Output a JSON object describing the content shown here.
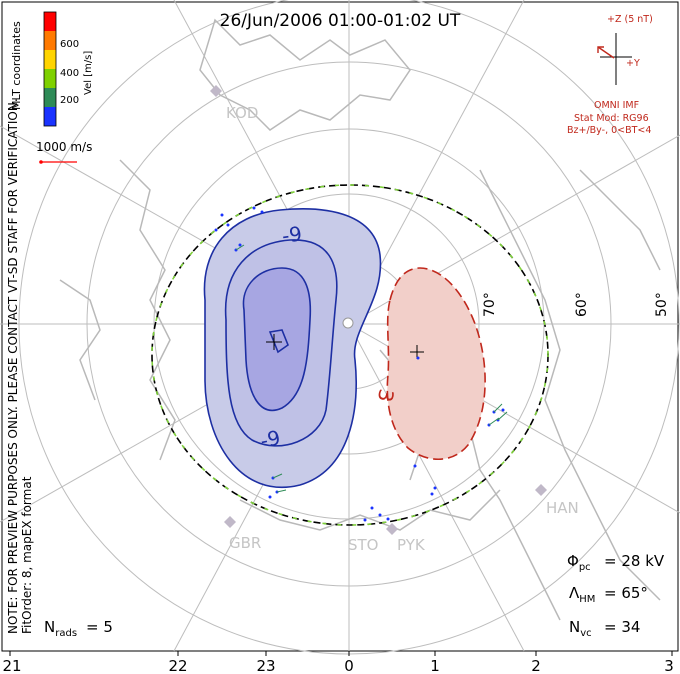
{
  "title": "26/Jun/2006 01:00-01:02 UT",
  "left_note": "NOTE: FOR PREVIEW PURPOSES ONLY. PLEASE CONTACT VT-SD STAFF FOR VERIFICATION.",
  "fit_order": "FitOrder: 8, mapEX format",
  "mlt_label": "MLT coordinates",
  "colorbar": {
    "label": "Vel [m/s]",
    "ticks": [
      "600",
      "400",
      "200"
    ],
    "colors": [
      "#ff0000",
      "#ff7a00",
      "#ffd400",
      "#7fd100",
      "#2e8b57",
      "#1a33ff"
    ]
  },
  "vector_scale": "1000 m/s",
  "imf": {
    "z_label": "+Z (5 nT)",
    "y_label": "+Y",
    "source": "OMNI IMF",
    "stat_mod": "Stat Mod: RG96",
    "condition": "Bz+/By-, 0<BT<4"
  },
  "lat_labels": [
    "70°",
    "60°",
    "50°"
  ],
  "contour_labels": {
    "negative": "-9",
    "positive": "3"
  },
  "stations": [
    "KOD",
    "GBR",
    "STO",
    "PYK",
    "HAN"
  ],
  "stats": {
    "phi_pc": "= 28 kV",
    "lambda_hm": "= 65°",
    "n_vc": "= 34",
    "n_rads": "= 5"
  },
  "mlt_axis": [
    "21",
    "22",
    "23",
    "0",
    "1",
    "2",
    "3"
  ],
  "colors": {
    "negative_fill": "#c8cbe8",
    "negative_core": "#a7a6e2",
    "negative_line": "#1d2fa3",
    "positive_fill": "#f2cfc9",
    "positive_line": "#c0281c",
    "grid": "#bdbdbd",
    "coast": "#b9b9b9",
    "boundary_green": "#7fd13b"
  }
}
